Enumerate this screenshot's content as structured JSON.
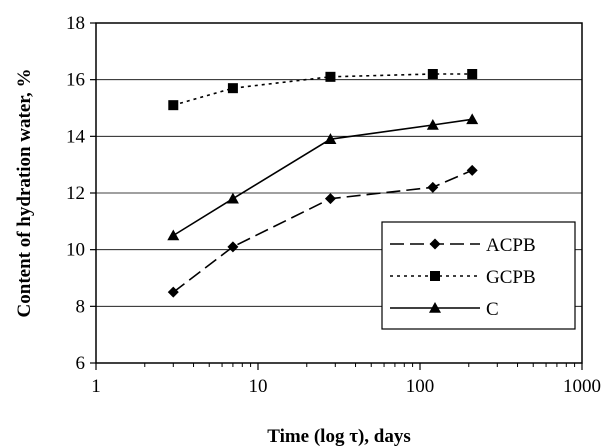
{
  "chart_data": {
    "type": "line",
    "xscale": "log",
    "xlim": [
      1,
      1000
    ],
    "ylim": [
      6,
      18
    ],
    "xticks": [
      1,
      10,
      100,
      1000
    ],
    "yticks": [
      6,
      8,
      10,
      12,
      14,
      16,
      18
    ],
    "xtick_labels": [
      "1",
      "10",
      "100",
      "1000"
    ],
    "ytick_labels": [
      "6",
      "8",
      "10",
      "12",
      "14",
      "16",
      "18"
    ],
    "xlabel": "Time (log τ), days",
    "ylabel": "Content of hydration water, %",
    "grid": "horizontal",
    "legend_position": "right",
    "series": [
      {
        "name": "ACPB",
        "marker": "diamond",
        "line": "dashed",
        "color": "#000000",
        "x": [
          3,
          7,
          28,
          120,
          210
        ],
        "y": [
          8.5,
          10.1,
          11.8,
          12.2,
          12.8
        ]
      },
      {
        "name": "GCPB",
        "marker": "square",
        "line": "dotted",
        "color": "#000000",
        "x": [
          3,
          7,
          28,
          120,
          210
        ],
        "y": [
          15.1,
          15.7,
          16.1,
          16.2,
          16.2
        ]
      },
      {
        "name": "C",
        "marker": "triangle",
        "line": "solid",
        "color": "#000000",
        "x": [
          3,
          7,
          28,
          120,
          210
        ],
        "y": [
          10.5,
          11.8,
          13.9,
          14.4,
          14.6
        ]
      }
    ]
  }
}
